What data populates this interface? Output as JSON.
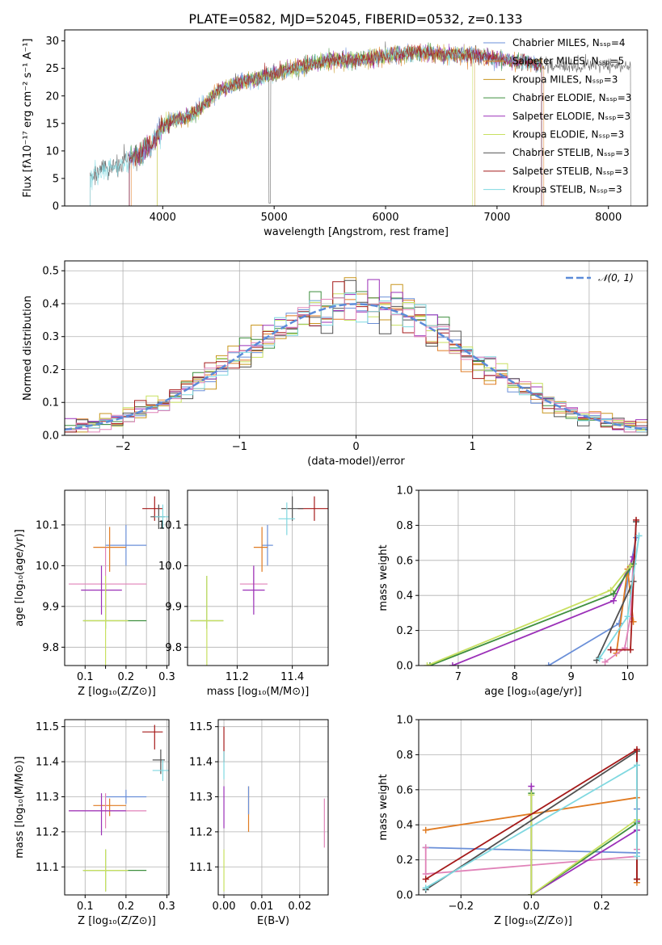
{
  "figure_title": "PLATE=0582, MJD=52045, FIBERID=0532, z=0.133",
  "colors": {
    "chabrier_miles": "#6a8fd8",
    "salpeter_miles": "#e07b22",
    "kroupa_miles": "#c8961e",
    "chabrier_elodie": "#3f8f3f",
    "salpeter_elodie": "#9b30b8",
    "kroupa_elodie": "#c8e060",
    "chabrier_stelib": "#505050",
    "salpeter_stelib": "#a51a1a",
    "kroupa_stelib": "#7fd8e0",
    "pink": "#e082b8",
    "gauss": "#5b8bd8",
    "grid": "#b0b0b0"
  },
  "chart_data": [
    {
      "id": "spectrum",
      "type": "line",
      "xlabel": "wavelength [Angstrom, rest frame]",
      "ylabel": "Flux [fλ10⁻¹⁷ erg cm⁻² s⁻¹ A⁻¹]",
      "xlim": [
        3120,
        8350
      ],
      "ylim": [
        0,
        32
      ],
      "xticks": [
        "4000",
        "5000",
        "6000",
        "7000",
        "8000"
      ],
      "yticks": [
        "0",
        "5",
        "10",
        "15",
        "20",
        "25",
        "30"
      ],
      "legend": "top-right",
      "legend_entries": [
        "Chabrier MILES, Nₛₛₚ=4",
        "Salpeter MILES, Nₛₛₚ=5",
        "Kroupa MILES, Nₛₛₚ=3",
        "Chabrier ELODIE, Nₛₛₚ=3",
        "Salpeter ELODIE, Nₛₛₚ=3",
        "Kroupa ELODIE, Nₛₛₚ=3",
        "Chabrier STELIB, Nₛₛₚ=3",
        "Salpeter STELIB, Nₛₛₚ=3",
        "Kroupa STELIB, Nₛₛₚ=3"
      ],
      "continuum": {
        "x": [
          3350,
          3500,
          3600,
          3700,
          3800,
          3900,
          3950,
          4000,
          4100,
          4200,
          4300,
          4400,
          4500,
          4700,
          4900,
          5100,
          5300,
          5500,
          5700,
          5900,
          6100,
          6300,
          6500,
          6700,
          6900,
          7100,
          7300,
          7400
        ],
        "y": [
          5.5,
          7,
          7.5,
          8.5,
          9.5,
          11,
          13,
          14.5,
          15.5,
          16,
          17,
          19,
          21,
          22.5,
          23.5,
          24.5,
          25.5,
          26.5,
          26.5,
          27,
          27.5,
          28,
          27.5,
          27.5,
          27,
          26.5,
          26,
          25.5
        ]
      },
      "model_ranges": [
        [
          3700,
          7400
        ],
        [
          3720,
          7420
        ],
        [
          3950,
          6800
        ],
        [
          3700,
          7400
        ],
        [
          3700,
          7400
        ],
        [
          3950,
          6780
        ],
        [
          3350,
          8200
        ],
        [
          3700,
          7400
        ],
        [
          3350,
          7400
        ]
      ]
    },
    {
      "id": "residuals",
      "type": "histogram",
      "xlabel": "(data-model)/error",
      "ylabel": "Normed distribution",
      "xlim": [
        -2.5,
        2.5
      ],
      "ylim": [
        0,
        0.53
      ],
      "xticks": [
        "−2",
        "−1",
        "0",
        "1",
        "2"
      ],
      "yticks": [
        "0.0",
        "0.1",
        "0.2",
        "0.3",
        "0.4",
        "0.5"
      ],
      "legend_entries": [
        "𝒩(0, 1)"
      ],
      "legend": "top-right",
      "bin_width": 0.1
    },
    {
      "id": "age-vs-Z",
      "type": "scatter",
      "xlabel": "Z [log₁₀(Z/Z⊙)]",
      "ylabel": "age  [log₁₀(age/yr)]",
      "xlim": [
        0.05,
        0.305
      ],
      "ylim": [
        9.755,
        10.185
      ],
      "xticks": [
        "0.1",
        "0.15",
        "0.2",
        "0.25",
        "0.3"
      ],
      "xticks_shown": [
        "0.1",
        "",
        "0.2",
        "",
        "0.3"
      ],
      "yticks": [
        "9.8",
        "9.9",
        "10.0",
        "10.1"
      ],
      "points": [
        {
          "x": 0.2,
          "xerr": [
            0.05,
            0.05
          ],
          "y": 10.05,
          "yerr": [
            0.05,
            0.05
          ],
          "c": "chabrier_miles"
        },
        {
          "x": 0.16,
          "xerr": [
            0.04,
            0.04
          ],
          "y": 10.045,
          "yerr": [
            0.06,
            0.05
          ],
          "c": "salpeter_miles"
        },
        {
          "x": 0.15,
          "xerr": [
            0.09,
            0.1
          ],
          "y": 9.955,
          "yerr": [
            0.09,
            0.09
          ],
          "c": "pink"
        },
        {
          "x": 0.14,
          "xerr": [
            0.05,
            0.05
          ],
          "y": 9.94,
          "yerr": [
            0.06,
            0.06
          ],
          "c": "salpeter_elodie"
        },
        {
          "x": 0.15,
          "xerr": [
            0.055,
            0.1
          ],
          "y": 9.865,
          "yerr": [
            0.02,
            0.09
          ],
          "c": "chabrier_elodie"
        },
        {
          "x": 0.15,
          "xerr": [
            0.055,
            0.055
          ],
          "y": 9.865,
          "yerr": [
            0.11,
            0.11
          ],
          "c": "kroupa_elodie"
        },
        {
          "x": 0.27,
          "xerr": [
            0.03,
            0.02
          ],
          "y": 10.14,
          "yerr": [
            0.03,
            0.03
          ],
          "c": "salpeter_stelib"
        },
        {
          "x": 0.28,
          "xerr": [
            0.02,
            0.015
          ],
          "y": 10.12,
          "yerr": [
            0.03,
            0.03
          ],
          "c": "chabrier_stelib"
        },
        {
          "x": 0.29,
          "xerr": [
            0.02,
            0.015
          ],
          "y": 10.12,
          "yerr": [
            0.03,
            0.03
          ],
          "c": "kroupa_stelib"
        }
      ]
    },
    {
      "id": "age-vs-mass",
      "type": "scatter",
      "xlabel": "mass [log₁₀(M/M⊙)]",
      "ylabel": "",
      "xlim": [
        11.02,
        11.53
      ],
      "ylim": [
        9.755,
        10.185
      ],
      "xticks": [
        "11.2",
        "11.4"
      ],
      "yticks": [
        "9.8",
        "9.9",
        "10.0",
        "10.1"
      ],
      "points": [
        {
          "x": 11.31,
          "xerr": [
            0.02,
            0.02
          ],
          "y": 10.05,
          "yerr": [
            0.05,
            0.05
          ],
          "c": "chabrier_miles"
        },
        {
          "x": 11.29,
          "xerr": [
            0.03,
            0.02
          ],
          "y": 10.045,
          "yerr": [
            0.06,
            0.05
          ],
          "c": "salpeter_miles"
        },
        {
          "x": 11.26,
          "xerr": [
            0.05,
            0.05
          ],
          "y": 9.955,
          "yerr": [
            0.04,
            0.04
          ],
          "c": "pink"
        },
        {
          "x": 11.26,
          "xerr": [
            0.04,
            0.04
          ],
          "y": 9.94,
          "yerr": [
            0.06,
            0.06
          ],
          "c": "salpeter_elodie"
        },
        {
          "x": 11.09,
          "xerr": [
            0.06,
            0.06
          ],
          "y": 9.865,
          "yerr": [
            0.02,
            0.11
          ],
          "c": "chabrier_elodie"
        },
        {
          "x": 11.09,
          "xerr": [
            0.06,
            0.06
          ],
          "y": 9.865,
          "yerr": [
            0.11,
            0.11
          ],
          "c": "kroupa_elodie"
        },
        {
          "x": 11.48,
          "xerr": [
            0.06,
            0.06
          ],
          "y": 10.14,
          "yerr": [
            0.03,
            0.03
          ],
          "c": "salpeter_stelib"
        },
        {
          "x": 11.4,
          "xerr": [
            0.04,
            0.04
          ],
          "y": 10.14,
          "yerr": [
            0.03,
            0.03
          ],
          "c": "chabrier_stelib"
        },
        {
          "x": 11.38,
          "xerr": [
            0.03,
            0.03
          ],
          "y": 10.115,
          "yerr": [
            0.04,
            0.04
          ],
          "c": "kroupa_stelib"
        }
      ]
    },
    {
      "id": "mass-weight-vs-age",
      "type": "line",
      "xlabel": "age  [log₁₀(age/yr)]",
      "ylabel": "mass weight",
      "xlim": [
        6.3,
        10.35
      ],
      "ylim": [
        0,
        1.0
      ],
      "xticks": [
        "7",
        "8",
        "9",
        "10"
      ],
      "yticks": [
        "0.0",
        "0.2",
        "0.4",
        "0.6",
        "0.8",
        "1.0"
      ],
      "series": [
        {
          "c": "chabrier_miles",
          "x": [
            8.6,
            9.85,
            10.15
          ],
          "y": [
            0.0,
            0.24,
            0.73
          ]
        },
        {
          "c": "salpeter_miles",
          "x": [
            9.8,
            10.0,
            10.1
          ],
          "y": [
            0.07,
            0.55,
            0.25
          ]
        },
        {
          "c": "pink",
          "x": [
            9.6,
            9.95,
            10.05,
            10.1
          ],
          "y": [
            0.02,
            0.1,
            0.28,
            0.6
          ]
        },
        {
          "c": "salpeter_elodie",
          "x": [
            6.9,
            9.75,
            10.1
          ],
          "y": [
            0.0,
            0.37,
            0.62
          ]
        },
        {
          "c": "chabrier_elodie",
          "x": [
            6.5,
            9.75,
            10.1
          ],
          "y": [
            0.0,
            0.41,
            0.58
          ]
        },
        {
          "c": "kroupa_elodie",
          "x": [
            6.45,
            9.7,
            10.05
          ],
          "y": [
            0.0,
            0.43,
            0.57
          ]
        },
        {
          "c": "chabrier_stelib",
          "x": [
            9.45,
            10.1,
            10.15
          ],
          "y": [
            0.03,
            0.48,
            0.82
          ]
        },
        {
          "c": "salpeter_stelib",
          "x": [
            9.7,
            10.05,
            10.15
          ],
          "y": [
            0.09,
            0.09,
            0.83
          ]
        },
        {
          "c": "kroupa_stelib",
          "x": [
            9.5,
            10.0,
            10.2
          ],
          "y": [
            0.04,
            0.28,
            0.74
          ]
        }
      ]
    },
    {
      "id": "mass-vs-Z",
      "type": "scatter",
      "xlabel": "Z [log₁₀(Z/Z⊙)]",
      "ylabel": "mass [log₁₀(M/M⊙)]",
      "xlim": [
        0.05,
        0.305
      ],
      "ylim": [
        11.02,
        11.52
      ],
      "xticks": [
        "0.1",
        "0.2",
        "0.3"
      ],
      "yticks": [
        "11.1",
        "11.2",
        "11.3",
        "11.4",
        "11.5"
      ],
      "points": [
        {
          "x": 0.2,
          "xerr": [
            0.05,
            0.05
          ],
          "y": 11.3,
          "yerr": [
            0.02,
            0.02
          ],
          "c": "chabrier_miles"
        },
        {
          "x": 0.16,
          "xerr": [
            0.04,
            0.04
          ],
          "y": 11.275,
          "yerr": [
            0.03,
            0.02
          ],
          "c": "salpeter_miles"
        },
        {
          "x": 0.15,
          "xerr": [
            0.09,
            0.1
          ],
          "y": 11.26,
          "yerr": [
            0.05,
            0.05
          ],
          "c": "pink"
        },
        {
          "x": 0.14,
          "xerr": [
            0.08,
            0.06
          ],
          "y": 11.26,
          "yerr": [
            0.07,
            0.05
          ],
          "c": "salpeter_elodie"
        },
        {
          "x": 0.15,
          "xerr": [
            0.055,
            0.1
          ],
          "y": 11.09,
          "yerr": [
            0.06,
            0.06
          ],
          "c": "chabrier_elodie"
        },
        {
          "x": 0.15,
          "xerr": [
            0.055,
            0.055
          ],
          "y": 11.09,
          "yerr": [
            0.06,
            0.06
          ],
          "c": "kroupa_elodie"
        },
        {
          "x": 0.27,
          "xerr": [
            0.03,
            0.02
          ],
          "y": 11.485,
          "yerr": [
            0.05,
            0.02
          ],
          "c": "salpeter_stelib"
        },
        {
          "x": 0.285,
          "xerr": [
            0.02,
            0.01
          ],
          "y": 11.405,
          "yerr": [
            0.04,
            0.03
          ],
          "c": "chabrier_stelib"
        },
        {
          "x": 0.29,
          "xerr": [
            0.025,
            0.015
          ],
          "y": 11.375,
          "yerr": [
            0.03,
            0.03
          ],
          "c": "kroupa_stelib"
        }
      ]
    },
    {
      "id": "mass-vs-ebv",
      "type": "scatter",
      "xlabel": "E(B-V)",
      "ylabel": "",
      "xlim": [
        -0.0015,
        0.0275
      ],
      "ylim": [
        11.02,
        11.52
      ],
      "xticks": [
        "0.00",
        "0.01",
        "0.02"
      ],
      "yticks": [
        "11.1",
        "11.2",
        "11.3",
        "11.4",
        "11.5"
      ],
      "points": [
        {
          "x": 0.0,
          "y": 11.45,
          "yerr": [
            0.05,
            0.05
          ],
          "c": "salpeter_stelib"
        },
        {
          "x": 0.0,
          "y": 11.39,
          "yerr": [
            0.04,
            0.04
          ],
          "c": "kroupa_stelib"
        },
        {
          "x": 0.0,
          "y": 11.27,
          "yerr": [
            0.06,
            0.06
          ],
          "c": "salpeter_elodie"
        },
        {
          "x": 0.0,
          "y": 11.09,
          "yerr": [
            0.06,
            0.06
          ],
          "c": "kroupa_elodie"
        },
        {
          "x": 0.0065,
          "y": 11.265,
          "yerr": [
            0.065,
            0.065
          ],
          "c": "salpeter_miles"
        },
        {
          "x": 0.0065,
          "y": 11.29,
          "yerr": [
            0.04,
            0.04
          ],
          "c": "chabrier_miles"
        },
        {
          "x": 0.0265,
          "y": 11.225,
          "yerr": [
            0.07,
            0.07
          ],
          "c": "pink"
        }
      ]
    },
    {
      "id": "mass-weight-vs-Z",
      "type": "line",
      "xlabel": "Z [log₁₀(Z/Z⊙)]",
      "ylabel": "mass weight",
      "xlim": [
        -0.32,
        0.33
      ],
      "ylim": [
        0,
        1.0
      ],
      "xticks": [
        "−0.2",
        "0.0",
        "0.2"
      ],
      "yticks": [
        "0.0",
        "0.2",
        "0.4",
        "0.6",
        "0.8",
        "1.0"
      ],
      "series": [
        {
          "c": "chabrier_miles",
          "x": [
            -0.3,
            0.3,
            0.3
          ],
          "y": [
            0.27,
            0.24,
            0.49
          ]
        },
        {
          "c": "salpeter_miles",
          "x": [
            -0.3,
            0.3,
            0.3
          ],
          "y": [
            0.37,
            0.555,
            0.07
          ]
        },
        {
          "c": "pink",
          "x": [
            -0.3,
            -0.3,
            0.3,
            0.3
          ],
          "y": [
            0.27,
            0.12,
            0.22,
            0.26
          ]
        },
        {
          "c": "salpeter_elodie",
          "x": [
            0.0,
            0.0,
            0.3,
            0.3
          ],
          "y": [
            0.62,
            0.0,
            0.37,
            0.42
          ]
        },
        {
          "c": "chabrier_elodie",
          "x": [
            0.0,
            0.0,
            0.3
          ],
          "y": [
            0.58,
            0.0,
            0.41
          ]
        },
        {
          "c": "kroupa_elodie",
          "x": [
            0.0,
            0.0,
            0.3
          ],
          "y": [
            0.57,
            0.0,
            0.43
          ]
        },
        {
          "c": "chabrier_stelib",
          "x": [
            -0.3,
            0.3,
            0.3
          ],
          "y": [
            0.03,
            0.82,
            0.09
          ]
        },
        {
          "c": "salpeter_stelib",
          "x": [
            -0.3,
            0.3,
            0.3
          ],
          "y": [
            0.09,
            0.83,
            0.09
          ]
        },
        {
          "c": "kroupa_stelib",
          "x": [
            -0.3,
            0.3,
            0.3
          ],
          "y": [
            0.04,
            0.74,
            0.22
          ]
        }
      ]
    }
  ]
}
